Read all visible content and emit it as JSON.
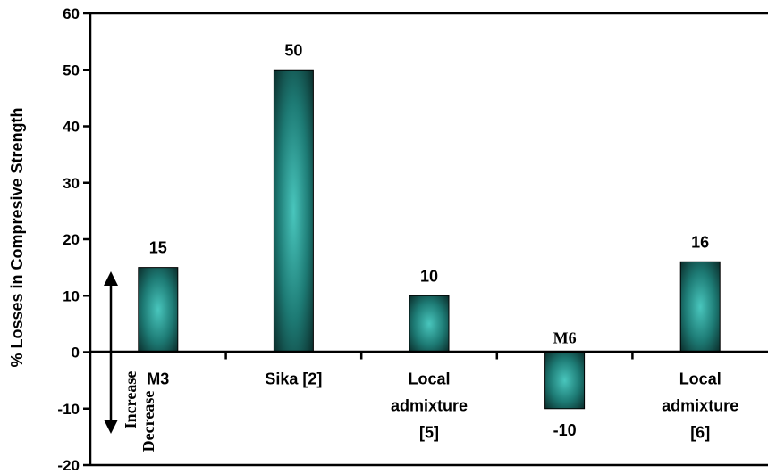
{
  "chart_data": {
    "type": "bar",
    "title": "",
    "xlabel": "",
    "ylabel": "% Losses in Compresive Strength",
    "ylim": [
      -20,
      60
    ],
    "yticks": [
      -20,
      -10,
      0,
      10,
      20,
      30,
      40,
      50,
      60
    ],
    "categories": [
      [
        "M3"
      ],
      [
        "Sika [2]"
      ],
      [
        "Local",
        "admixture",
        "[5]"
      ],
      [
        "M6"
      ],
      [
        "Local",
        "admixture",
        "[6]"
      ]
    ],
    "values": [
      15,
      50,
      10,
      -10,
      16
    ],
    "data_labels": [
      "15",
      "50",
      "10",
      "-10",
      "16"
    ],
    "bar_color": "#1d7a74",
    "bar_color_light": "#49c6bd",
    "bar_color_dark": "#0b2d2b",
    "grid": false,
    "annotations": {
      "increase": "Increase",
      "decrease": "Decrease"
    }
  }
}
